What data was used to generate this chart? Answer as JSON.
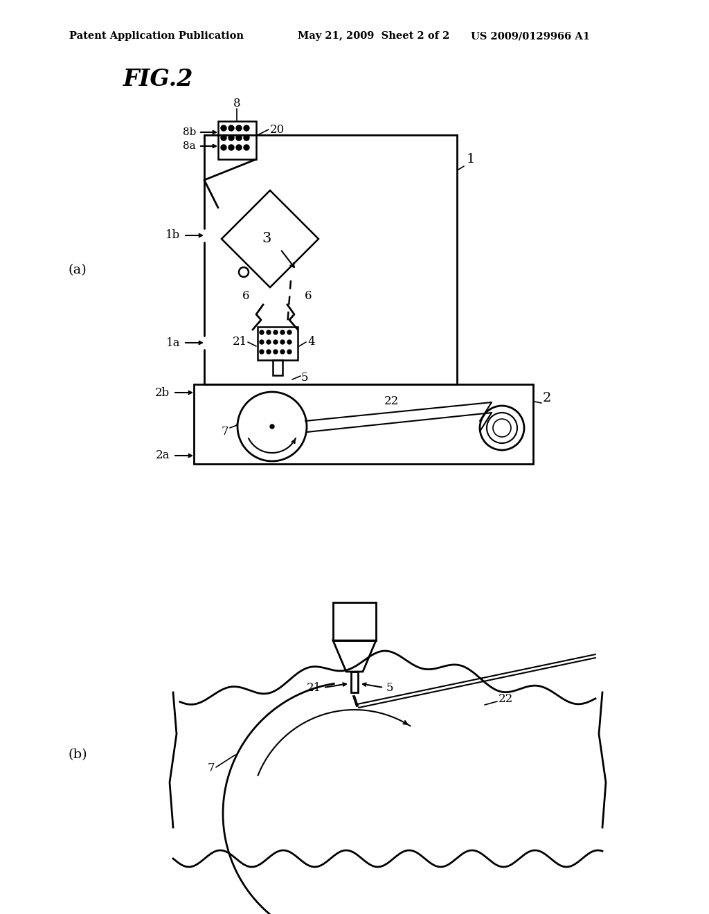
{
  "bg_color": "#ffffff",
  "line_color": "#000000",
  "header_text": "Patent Application Publication      May 21, 2009  Sheet 2 of 2        US 2009/0129966 A1",
  "fig_label": "FIG.2",
  "label_a": "(a)",
  "label_b": "(b)"
}
